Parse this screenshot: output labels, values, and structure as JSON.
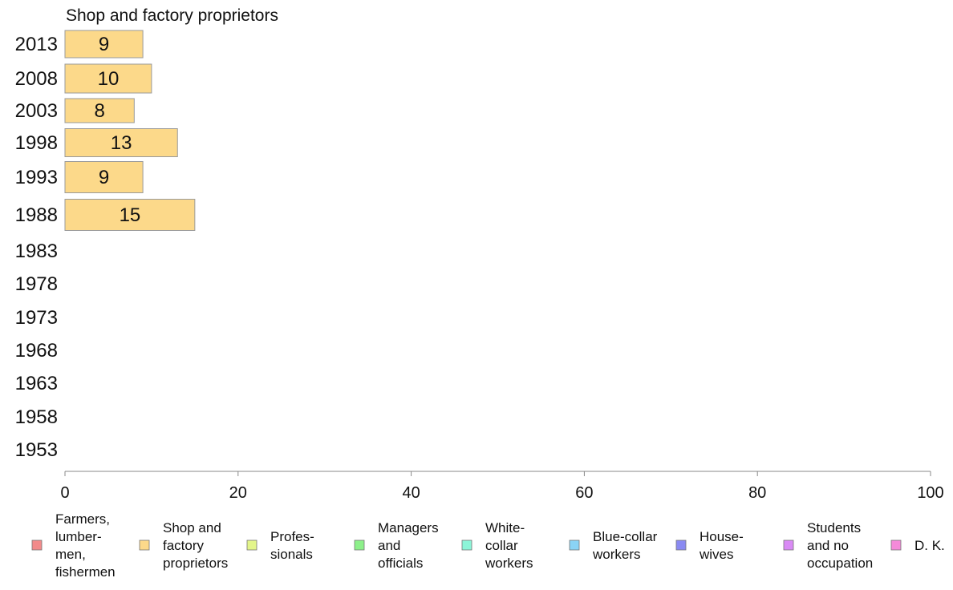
{
  "chart_data": {
    "type": "bar",
    "orientation": "horizontal",
    "title": "Shop and factory proprietors",
    "categories": [
      "2013",
      "2008",
      "2003",
      "1998",
      "1993",
      "1988",
      "1983",
      "1978",
      "1973",
      "1968",
      "1963",
      "1958",
      "1953"
    ],
    "series": [
      {
        "name": "Shop and factory proprietors",
        "values": [
          9,
          10,
          8,
          13,
          9,
          15,
          null,
          null,
          null,
          null,
          null,
          null,
          null
        ],
        "color": "#fcd98a"
      }
    ],
    "xlim": [
      0,
      100
    ],
    "xticks": [
      "0",
      "20",
      "40",
      "60",
      "80",
      "100"
    ],
    "grid": false,
    "legend_position": "bottom",
    "legend": [
      {
        "lines": [
          "Farmers,",
          "lumber-",
          "men,",
          "fishermen"
        ],
        "color": "#f28a8a"
      },
      {
        "lines": [
          "Shop and",
          "factory",
          "proprietors"
        ],
        "color": "#fcd98a"
      },
      {
        "lines": [
          "Profes-",
          "sionals"
        ],
        "color": "#e3f58a"
      },
      {
        "lines": [
          "Managers",
          "and",
          "officials"
        ],
        "color": "#8df08a"
      },
      {
        "lines": [
          "White-",
          "collar",
          "workers"
        ],
        "color": "#8cf5d8"
      },
      {
        "lines": [
          "Blue-collar",
          "workers"
        ],
        "color": "#8ad4f5"
      },
      {
        "lines": [
          "House-",
          "wives"
        ],
        "color": "#8a8af2"
      },
      {
        "lines": [
          "Students",
          "and no",
          "occupation"
        ],
        "color": "#d98af5"
      },
      {
        "lines": [
          "D. K."
        ],
        "color": "#f58ad9"
      }
    ]
  }
}
